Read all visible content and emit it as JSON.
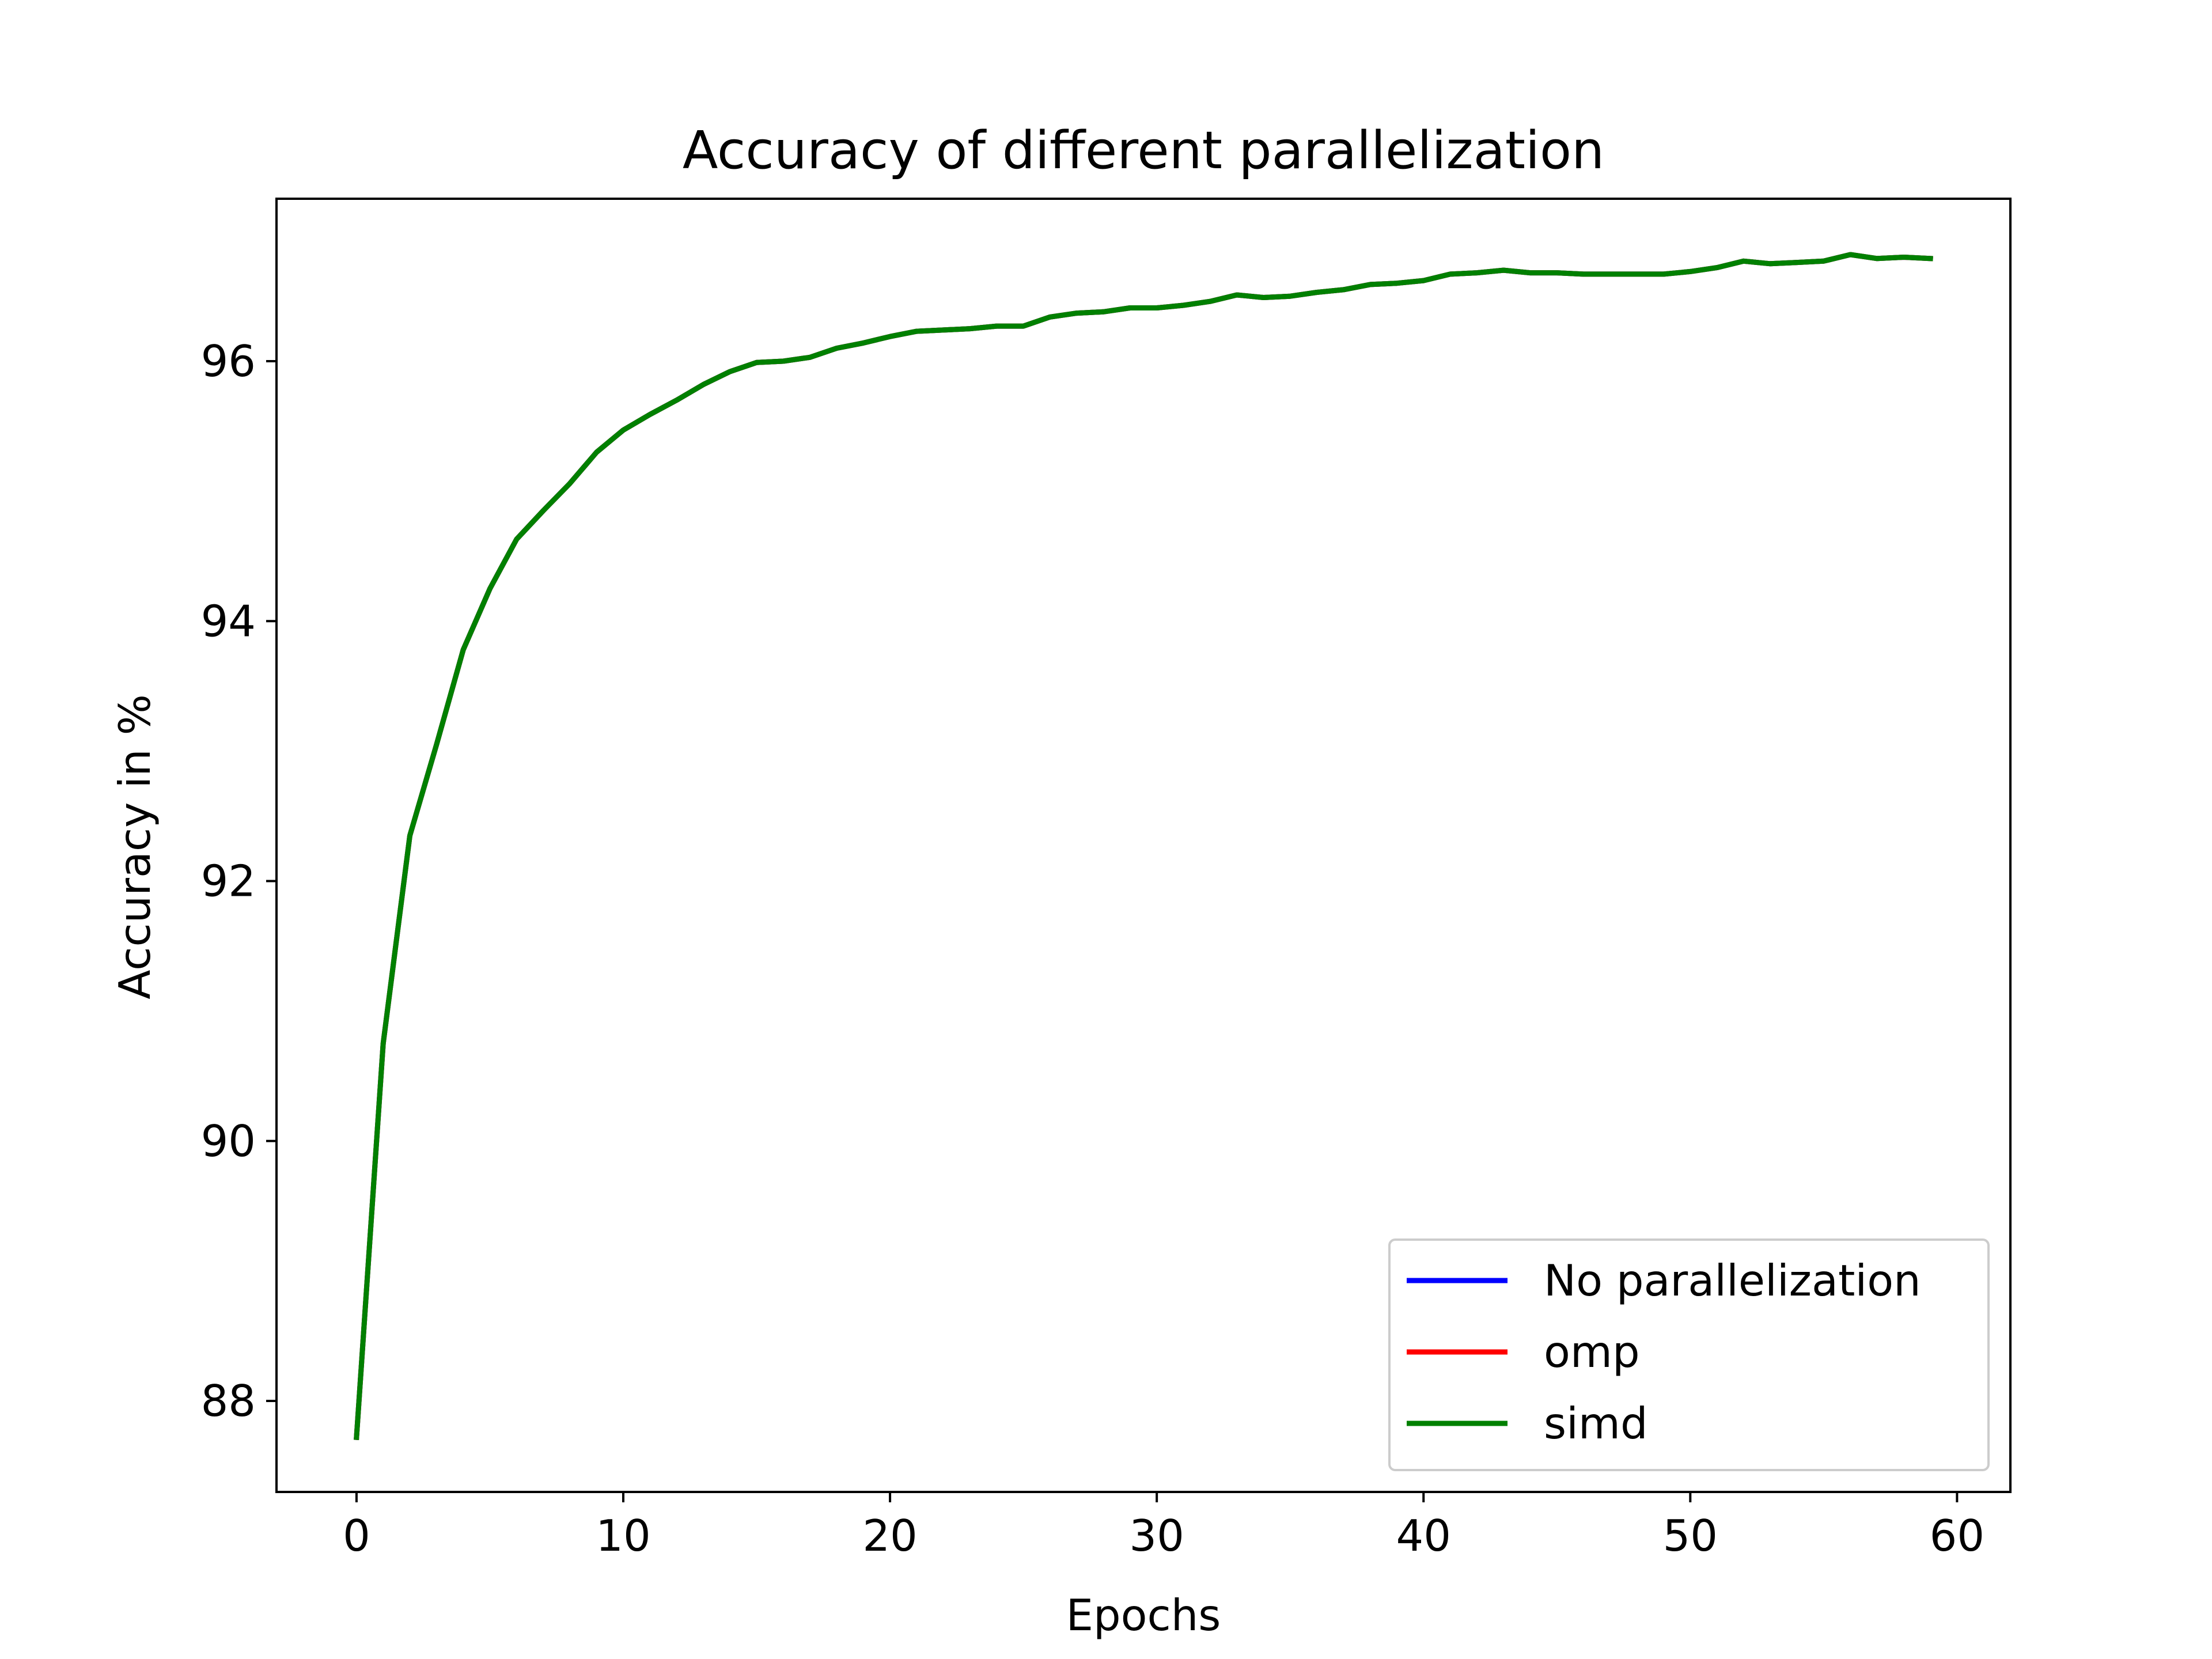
{
  "chart_data": {
    "type": "line",
    "title": "Accuracy of different parallelization",
    "xlabel": "Epochs",
    "ylabel": "Accuracy in %",
    "xlim": [
      -3,
      62
    ],
    "ylim": [
      87.3,
      97.25
    ],
    "xticks": [
      0,
      10,
      20,
      30,
      40,
      50,
      60
    ],
    "yticks": [
      88,
      90,
      92,
      94,
      96
    ],
    "grid": false,
    "legend_position": "lower-right",
    "x": [
      0,
      1,
      2,
      3,
      4,
      5,
      6,
      7,
      8,
      9,
      10,
      11,
      12,
      13,
      14,
      15,
      16,
      17,
      18,
      19,
      20,
      21,
      22,
      23,
      24,
      25,
      26,
      27,
      28,
      29,
      30,
      31,
      32,
      33,
      34,
      35,
      36,
      37,
      38,
      39,
      40,
      41,
      42,
      43,
      44,
      45,
      46,
      47,
      48,
      49,
      50,
      51,
      52,
      53,
      54,
      55,
      56,
      57,
      58,
      59
    ],
    "series": [
      {
        "name": "No parallelization",
        "color": "#0000ff",
        "values": [
          87.72,
          90.75,
          92.35,
          93.05,
          93.78,
          94.25,
          94.63,
          94.85,
          95.06,
          95.3,
          95.47,
          95.59,
          95.7,
          95.82,
          95.92,
          95.99,
          96.0,
          96.03,
          96.1,
          96.14,
          96.19,
          96.23,
          96.24,
          96.25,
          96.27,
          96.27,
          96.34,
          96.37,
          96.38,
          96.41,
          96.41,
          96.43,
          96.46,
          96.51,
          96.49,
          96.5,
          96.53,
          96.55,
          96.59,
          96.6,
          96.62,
          96.67,
          96.68,
          96.7,
          96.68,
          96.68,
          96.67,
          96.67,
          96.67,
          96.67,
          96.69,
          96.72,
          96.77,
          96.75,
          96.76,
          96.77,
          96.82,
          96.79,
          96.8,
          96.79
        ]
      },
      {
        "name": "omp",
        "color": "#ff0000",
        "values": [
          87.72,
          90.75,
          92.35,
          93.05,
          93.78,
          94.25,
          94.63,
          94.85,
          95.06,
          95.3,
          95.47,
          95.59,
          95.7,
          95.82,
          95.92,
          95.99,
          96.0,
          96.03,
          96.1,
          96.14,
          96.19,
          96.23,
          96.24,
          96.25,
          96.27,
          96.27,
          96.34,
          96.37,
          96.38,
          96.41,
          96.41,
          96.43,
          96.46,
          96.51,
          96.49,
          96.5,
          96.53,
          96.55,
          96.59,
          96.6,
          96.62,
          96.67,
          96.68,
          96.7,
          96.68,
          96.68,
          96.67,
          96.67,
          96.67,
          96.67,
          96.69,
          96.72,
          96.77,
          96.75,
          96.76,
          96.77,
          96.82,
          96.79,
          96.8,
          96.79
        ]
      },
      {
        "name": "simd",
        "color": "#008000",
        "values": [
          87.72,
          90.75,
          92.35,
          93.05,
          93.78,
          94.25,
          94.63,
          94.85,
          95.06,
          95.3,
          95.47,
          95.59,
          95.7,
          95.82,
          95.92,
          95.99,
          96.0,
          96.03,
          96.1,
          96.14,
          96.19,
          96.23,
          96.24,
          96.25,
          96.27,
          96.27,
          96.34,
          96.37,
          96.38,
          96.41,
          96.41,
          96.43,
          96.46,
          96.51,
          96.49,
          96.5,
          96.53,
          96.55,
          96.59,
          96.6,
          96.62,
          96.67,
          96.68,
          96.7,
          96.68,
          96.68,
          96.67,
          96.67,
          96.67,
          96.67,
          96.69,
          96.72,
          96.77,
          96.75,
          96.76,
          96.77,
          96.82,
          96.79,
          96.8,
          96.79
        ]
      }
    ]
  }
}
